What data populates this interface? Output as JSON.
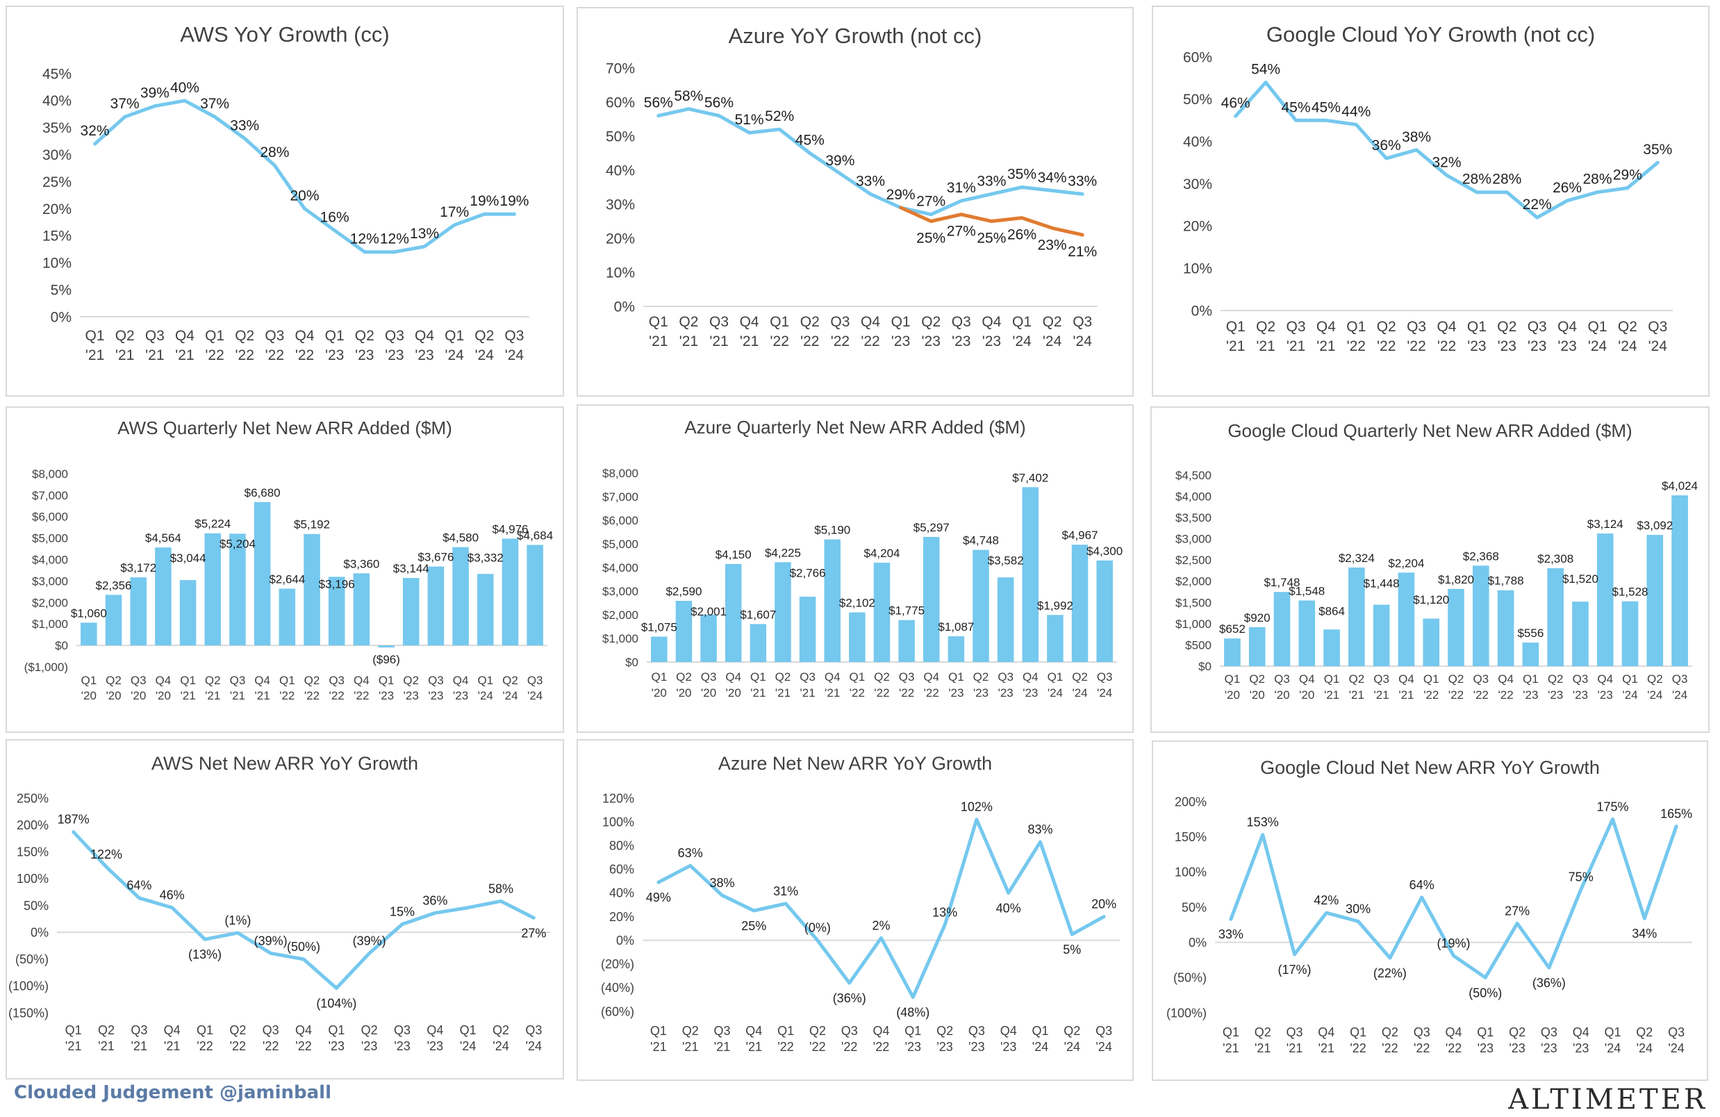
{
  "colors": {
    "series": "#75c8ee",
    "series2": "#e07b30",
    "axis": "#d9d9d9",
    "text": "#404040",
    "footer_left": "#5b7ba6"
  },
  "footer": {
    "left": "Clouded Judgement @jaminball",
    "right": "ALTIMETER"
  },
  "chart_data": [
    {
      "type": "line",
      "title": "AWS YoY Growth (cc)",
      "x": [
        "Q1 '21",
        "Q2 '21",
        "Q3 '21",
        "Q4 '21",
        "Q1 '22",
        "Q2 '22",
        "Q3 '22",
        "Q4 '22",
        "Q1 '23",
        "Q2 '23",
        "Q3 '23",
        "Q4 '23",
        "Q1 '24",
        "Q2 '24",
        "Q3 '24"
      ],
      "series": [
        {
          "values": [
            32,
            37,
            39,
            40,
            37,
            33,
            28,
            20,
            16,
            12,
            12,
            13,
            17,
            19,
            19
          ],
          "labels": [
            "32%",
            "37%",
            "39%",
            "40%",
            "37%",
            "33%",
            "28%",
            "20%",
            "16%",
            "12%",
            "12%",
            "13%",
            "17%",
            "19%",
            "19%"
          ]
        }
      ],
      "yticks": [
        "0%",
        "5%",
        "10%",
        "15%",
        "20%",
        "25%",
        "30%",
        "35%",
        "40%",
        "45%"
      ],
      "ylim": [
        0,
        45
      ]
    },
    {
      "type": "line",
      "title": "Azure YoY Growth (not cc)",
      "x": [
        "Q1 '21",
        "Q2 '21",
        "Q3 '21",
        "Q4 '21",
        "Q1 '22",
        "Q2 '22",
        "Q3 '22",
        "Q4 '22",
        "Q1 '23",
        "Q2 '23",
        "Q3 '23",
        "Q4 '23",
        "Q1 '24",
        "Q2 '24",
        "Q3 '24"
      ],
      "series": [
        {
          "values": [
            56,
            58,
            56,
            51,
            52,
            45,
            39,
            33,
            29,
            27,
            31,
            33,
            35,
            34,
            33
          ],
          "labels": [
            "56%",
            "58%",
            "56%",
            "51%",
            "52%",
            "45%",
            "39%",
            "33%",
            "29%",
            "27%",
            "31%",
            "33%",
            "35%",
            "34%",
            "33%"
          ]
        },
        {
          "values": [
            null,
            null,
            null,
            null,
            null,
            null,
            null,
            null,
            29,
            25,
            27,
            25,
            26,
            23,
            21
          ],
          "labels": [
            "",
            "",
            "",
            "",
            "",
            "",
            "",
            "",
            "",
            "25%",
            "27%",
            "25%",
            "26%",
            "23%",
            "21%"
          ]
        }
      ],
      "yticks": [
        "0%",
        "10%",
        "20%",
        "30%",
        "40%",
        "50%",
        "60%",
        "70%"
      ],
      "ylim": [
        0,
        70
      ]
    },
    {
      "type": "line",
      "title": "Google Cloud YoY Growth (not cc)",
      "x": [
        "Q1 '21",
        "Q2 '21",
        "Q3 '21",
        "Q4 '21",
        "Q1 '22",
        "Q2 '22",
        "Q3 '22",
        "Q4 '22",
        "Q1 '23",
        "Q2 '23",
        "Q3 '23",
        "Q4 '23",
        "Q1 '24",
        "Q2 '24",
        "Q3 '24"
      ],
      "series": [
        {
          "values": [
            46,
            54,
            45,
            45,
            44,
            36,
            38,
            32,
            28,
            28,
            22,
            26,
            28,
            29,
            35
          ],
          "labels": [
            "46%",
            "54%",
            "45%",
            "45%",
            "44%",
            "36%",
            "38%",
            "32%",
            "28%",
            "28%",
            "22%",
            "26%",
            "28%",
            "29%",
            "35%"
          ]
        }
      ],
      "yticks": [
        "0%",
        "10%",
        "20%",
        "30%",
        "40%",
        "50%",
        "60%"
      ],
      "ylim": [
        0,
        60
      ]
    },
    {
      "type": "bar",
      "title": "AWS Quarterly Net New ARR Added ($M)",
      "x": [
        "Q1 '20",
        "Q2 '20",
        "Q3 '20",
        "Q4 '20",
        "Q1 '21",
        "Q2 '21",
        "Q3 '21",
        "Q4 '21",
        "Q1 '22",
        "Q2 '22",
        "Q3 '22",
        "Q4 '22",
        "Q1 '23",
        "Q2 '23",
        "Q3 '23",
        "Q4 '23",
        "Q1 '24",
        "Q2 '24",
        "Q3 '24"
      ],
      "series": [
        {
          "values": [
            1060,
            2356,
            3172,
            4564,
            3044,
            5224,
            5204,
            6680,
            2644,
            5192,
            3196,
            3360,
            -96,
            3144,
            3676,
            4580,
            3332,
            4976,
            4684
          ],
          "labels": [
            "$1,060",
            "$2,356",
            "$3,172",
            "$4,564",
            "$3,044",
            "$5,224",
            "$5,204",
            "$6,680",
            "$2,644",
            "$5,192",
            "$3,196",
            "$3,360",
            "($96)",
            "$3,144",
            "$3,676",
            "$4,580",
            "$3,332",
            "$4,976",
            "$4,684"
          ]
        }
      ],
      "yticks": [
        "($1,000)",
        "$0",
        "$1,000",
        "$2,000",
        "$3,000",
        "$4,000",
        "$5,000",
        "$6,000",
        "$7,000",
        "$8,000"
      ],
      "ylim": [
        -1000,
        8000
      ]
    },
    {
      "type": "bar",
      "title": "Azure Quarterly Net New ARR Added ($M)",
      "x": [
        "Q1 '20",
        "Q2 '20",
        "Q3 '20",
        "Q4 '20",
        "Q1 '21",
        "Q2 '21",
        "Q3 '21",
        "Q4 '21",
        "Q1 '22",
        "Q2 '22",
        "Q3 '22",
        "Q4 '22",
        "Q1 '23",
        "Q2 '23",
        "Q3 '23",
        "Q4 '23",
        "Q1 '24",
        "Q2 '24",
        "Q3 '24"
      ],
      "series": [
        {
          "values": [
            1075,
            2590,
            2001,
            4150,
            1607,
            4225,
            2766,
            5190,
            2102,
            4204,
            1775,
            5297,
            1087,
            4748,
            3582,
            7402,
            1992,
            4967,
            4300
          ],
          "labels": [
            "$1,075",
            "$2,590",
            "$2,001",
            "$4,150",
            "$1,607",
            "$4,225",
            "$2,766",
            "$5,190",
            "$2,102",
            "$4,204",
            "$1,775",
            "$5,297",
            "$1,087",
            "$4,748",
            "$3,582",
            "$7,402",
            "$1,992",
            "$4,967",
            "$4,300"
          ]
        }
      ],
      "yticks": [
        "$0",
        "$1,000",
        "$2,000",
        "$3,000",
        "$4,000",
        "$5,000",
        "$6,000",
        "$7,000",
        "$8,000"
      ],
      "ylim": [
        0,
        8000
      ]
    },
    {
      "type": "bar",
      "title": "Google Cloud Quarterly Net New ARR Added ($M)",
      "x": [
        "Q1 '20",
        "Q2 '20",
        "Q3 '20",
        "Q4 '20",
        "Q1 '21",
        "Q2 '21",
        "Q3 '21",
        "Q4 '21",
        "Q1 '22",
        "Q2 '22",
        "Q3 '22",
        "Q4 '22",
        "Q1 '23",
        "Q2 '23",
        "Q3 '23",
        "Q4 '23",
        "Q1 '24",
        "Q2 '24",
        "Q3 '24"
      ],
      "series": [
        {
          "values": [
            652,
            920,
            1748,
            1548,
            864,
            2324,
            1448,
            2204,
            1120,
            1820,
            2368,
            1788,
            556,
            2308,
            1520,
            3124,
            1528,
            3092,
            4024
          ],
          "labels": [
            "$652",
            "$920",
            "$1,748",
            "$1,548",
            "$864",
            "$2,324",
            "$1,448",
            "$2,204",
            "$1,120",
            "$1,820",
            "$2,368",
            "$1,788",
            "$556",
            "$2,308",
            "$1,520",
            "$3,124",
            "$1,528",
            "$3,092",
            "$4,024"
          ]
        }
      ],
      "yticks": [
        "$0",
        "$500",
        "$1,000",
        "$1,500",
        "$2,000",
        "$2,500",
        "$3,000",
        "$3,500",
        "$4,000",
        "$4,500"
      ],
      "ylim": [
        0,
        4500
      ]
    },
    {
      "type": "line",
      "title": "AWS Net New ARR YoY Growth",
      "x": [
        "Q1 '21",
        "Q2 '21",
        "Q3 '21",
        "Q4 '21",
        "Q1 '22",
        "Q2 '22",
        "Q3 '22",
        "Q4 '22",
        "Q1 '23",
        "Q2 '23",
        "Q3 '23",
        "Q4 '23",
        "Q1 '24",
        "Q2 '24",
        "Q3 '24"
      ],
      "series": [
        {
          "values": [
            187,
            122,
            64,
            46,
            -13,
            -1,
            -39,
            -50,
            -104,
            -39,
            15,
            36,
            46,
            58,
            27
          ],
          "labels": [
            "187%",
            "122%",
            "64%",
            "46%",
            "(13%)",
            "(1%)",
            "(39%)",
            "(50%)",
            "(104%)",
            "(39%)",
            "15%",
            "36%",
            "",
            "58%",
            "27%"
          ]
        }
      ],
      "yticks": [
        "(150%)",
        "(100%)",
        "(50%)",
        "0%",
        "50%",
        "100%",
        "150%",
        "200%",
        "250%"
      ],
      "ylim": [
        -150,
        250
      ]
    },
    {
      "type": "line",
      "title": "Azure Net New ARR YoY Growth",
      "x": [
        "Q1 '21",
        "Q2 '21",
        "Q3 '21",
        "Q4 '21",
        "Q1 '22",
        "Q2 '22",
        "Q3 '22",
        "Q4 '22",
        "Q1 '23",
        "Q2 '23",
        "Q3 '23",
        "Q4 '23",
        "Q1 '24",
        "Q2 '24",
        "Q3 '24"
      ],
      "series": [
        {
          "values": [
            49,
            63,
            38,
            25,
            31,
            0,
            -36,
            2,
            -48,
            13,
            102,
            40,
            83,
            5,
            20
          ],
          "labels": [
            "49%",
            "63%",
            "38%",
            "25%",
            "31%",
            "(0%)",
            "(36%)",
            "2%",
            "(48%)",
            "13%",
            "102%",
            "40%",
            "83%",
            "5%",
            "20%"
          ]
        }
      ],
      "yticks": [
        "(60%)",
        "(40%)",
        "(20%)",
        "0%",
        "20%",
        "40%",
        "60%",
        "80%",
        "100%",
        "120%"
      ],
      "ylim": [
        -60,
        120
      ]
    },
    {
      "type": "line",
      "title": "Google Cloud Net New ARR YoY Growth",
      "x": [
        "Q1 '21",
        "Q2 '21",
        "Q3 '21",
        "Q4 '21",
        "Q1 '22",
        "Q2 '22",
        "Q3 '22",
        "Q4 '22",
        "Q1 '23",
        "Q2 '23",
        "Q3 '23",
        "Q4 '23",
        "Q1 '24",
        "Q2 '24",
        "Q3 '24"
      ],
      "series": [
        {
          "values": [
            33,
            153,
            -17,
            42,
            30,
            -22,
            64,
            -19,
            -50,
            27,
            -36,
            75,
            175,
            34,
            165
          ],
          "labels": [
            "33%",
            "153%",
            "(17%)",
            "42%",
            "30%",
            "(22%)",
            "64%",
            "(19%)",
            "(50%)",
            "27%",
            "(36%)",
            "75%",
            "175%",
            "34%",
            "165%"
          ]
        }
      ],
      "yticks": [
        "(100%)",
        "(50%)",
        "0%",
        "50%",
        "100%",
        "150%",
        "200%"
      ],
      "ylim": [
        -100,
        200
      ]
    }
  ]
}
